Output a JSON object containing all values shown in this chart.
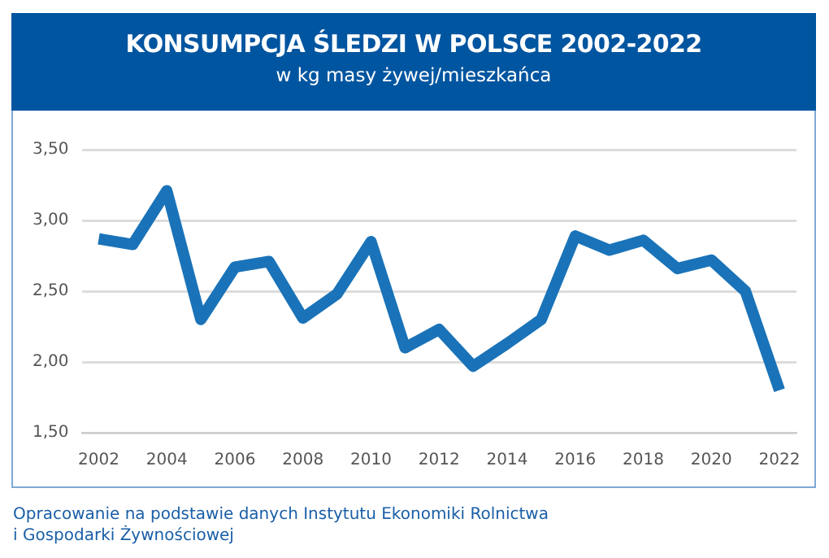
{
  "chart_data": {
    "type": "line",
    "title": "KONSUMPCJA ŚLEDZI W POLSCE 2002-2022",
    "subtitle": "w kg masy żywej/mieszkańca",
    "categories": [
      "2002",
      null,
      "2004",
      null,
      "2006",
      null,
      "2008",
      null,
      "2010",
      null,
      "2012",
      null,
      "2014",
      null,
      "2016",
      null,
      "2018",
      null,
      "2020",
      null,
      "2022"
    ],
    "series": [
      {
        "color": "#1a73b8",
        "values": [
          2.87,
          2.83,
          3.21,
          2.3,
          2.67,
          2.71,
          2.31,
          2.48,
          2.85,
          2.1,
          2.23,
          1.97,
          2.13,
          2.3,
          2.89,
          2.79,
          2.86,
          2.66,
          2.72,
          2.5,
          1.8
        ]
      }
    ],
    "ylim": [
      1.5,
      3.5
    ],
    "yticks": [
      {
        "value": 1.5,
        "label": "1,50"
      },
      {
        "value": 2,
        "label": "2,00"
      },
      {
        "value": 2.5,
        "label": "2,50"
      },
      {
        "value": 3,
        "label": "3,00"
      },
      {
        "value": 3.5,
        "label": "3,50"
      }
    ],
    "grid": "y",
    "legend": false,
    "marker": "none",
    "line_style": "solid",
    "annotations": [
      "Opracowanie na podstawie danych Instytutu Ekonomiki Rolnictwa i Gospodarki Żywnościowej"
    ]
  }
}
